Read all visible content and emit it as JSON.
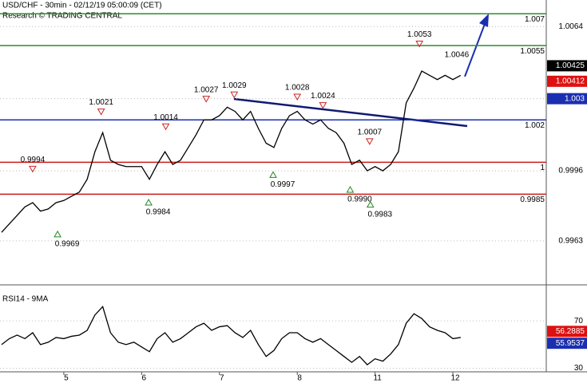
{
  "chart_data": [
    {
      "type": "line",
      "title": "USD/CHF - 30min - 02/12/19 05:00:09 (CET)",
      "subtitle": "Research © TRADING CENTRAL",
      "x": [
        4.2,
        4.3,
        4.4,
        4.5,
        4.6,
        4.7,
        4.8,
        4.9,
        5.0,
        5.1,
        5.2,
        5.3,
        5.4,
        5.5,
        5.6,
        5.7,
        5.8,
        5.9,
        6.0,
        6.1,
        6.2,
        6.3,
        6.4,
        6.5,
        6.6,
        6.7,
        6.8,
        6.9,
        7.0,
        7.1,
        7.2,
        7.3,
        7.4,
        7.5,
        7.6,
        7.7,
        7.8,
        7.9,
        8.0,
        8.1,
        8.2,
        8.3,
        8.4,
        8.5,
        8.6,
        8.7,
        8.8,
        8.9,
        9.0,
        9.1,
        9.2,
        9.3,
        9.4,
        9.5,
        9.6,
        9.7,
        9.8,
        9.9,
        10.0,
        10.1
      ],
      "series": [
        {
          "color": "#000000",
          "values": [
            0.9967,
            0.9971,
            0.9975,
            0.9979,
            0.9981,
            0.9977,
            0.9978,
            0.9981,
            0.9982,
            0.9984,
            0.9986,
            0.9992,
            1.0005,
            1.0014,
            1.0001,
            0.9999,
            0.9998,
            0.9998,
            0.9998,
            0.9992,
            0.9999,
            1.0005,
            0.9999,
            1.0001,
            1.0007,
            1.0013,
            1.002,
            1.002,
            1.0022,
            1.0026,
            1.0024,
            1.002,
            1.0024,
            1.0016,
            1.0009,
            1.0007,
            1.0016,
            1.0022,
            1.0024,
            1.002,
            1.0018,
            1.002,
            1.0016,
            1.0014,
            1.0009,
            0.9999,
            1.0001,
            0.9996,
            0.9998,
            0.9996,
            0.9999,
            1.0005,
            1.0028,
            1.0035,
            1.0043,
            1.0041,
            1.0039,
            1.0041,
            1.0039,
            1.0041
          ]
        }
      ],
      "xlim": [
        4.18,
        11.2
      ],
      "xticks": [
        5,
        6,
        7,
        8,
        {
          "value": 9,
          "label": "11"
        },
        {
          "value": 10,
          "label": "12"
        }
      ],
      "ylim": [
        0.9943,
        1.00765
      ],
      "yticks": [
        1.0064,
        1.003,
        0.9996,
        0.9963
      ],
      "grid": true,
      "levels": [
        {
          "value": 1.007,
          "color": "#2e8b2e"
        },
        {
          "value": 1.0055,
          "color": "#2e8b2e"
        },
        {
          "value": 1.002,
          "color": "#1a2fb0"
        },
        {
          "value": 1,
          "color": "#cc1a1a"
        },
        {
          "value": 0.9985,
          "color": "#cc1a1a"
        }
      ],
      "highs": {
        "color": "#cc2222",
        "x": [
          4.6,
          5.48,
          6.31,
          6.83,
          7.19,
          8.0,
          8.33,
          8.93,
          9.57
        ],
        "values": [
          0.9994,
          1.0021,
          1.0014,
          1.0027,
          1.0029,
          1.0028,
          1.0024,
          1.0007,
          1.0053
        ]
      },
      "lows": {
        "color": "#228822",
        "x": [
          4.92,
          6.09,
          7.69,
          8.68,
          8.94
        ],
        "values": [
          0.9969,
          0.9984,
          0.9997,
          0.999,
          0.9983
        ],
        "value_labels": [
          "0.9969",
          "0.9984",
          "0.9997",
          "0.9990",
          "0.9983"
        ]
      },
      "notes": [
        {
          "x": 10.05,
          "value": 1.0046
        }
      ],
      "axis_labels": [
        {
          "value": 1.00425,
          "color": "#000000"
        },
        {
          "value": 1.00412,
          "color": "#dd1111"
        },
        {
          "value": 1.003,
          "color": "#1a2fb0"
        }
      ]
    },
    {
      "type": "line",
      "title": "RSI14 - 9MA",
      "x": [
        4.2,
        4.3,
        4.4,
        4.5,
        4.6,
        4.7,
        4.8,
        4.9,
        5.0,
        5.1,
        5.2,
        5.3,
        5.4,
        5.5,
        5.6,
        5.7,
        5.8,
        5.9,
        6.0,
        6.1,
        6.2,
        6.3,
        6.4,
        6.5,
        6.6,
        6.7,
        6.8,
        6.9,
        7.0,
        7.1,
        7.2,
        7.3,
        7.4,
        7.5,
        7.6,
        7.7,
        7.8,
        7.9,
        8.0,
        8.1,
        8.2,
        8.3,
        8.4,
        8.5,
        8.6,
        8.7,
        8.8,
        8.9,
        9.0,
        9.1,
        9.2,
        9.3,
        9.4,
        9.5,
        9.6,
        9.7,
        9.8,
        9.9,
        10.0,
        10.1
      ],
      "series": [
        {
          "color": "#000000",
          "values": [
            50,
            55,
            58,
            55,
            60,
            50,
            52,
            56,
            55,
            57,
            58,
            62,
            75,
            82,
            60,
            52,
            50,
            52,
            48,
            44,
            55,
            60,
            52,
            55,
            60,
            65,
            68,
            62,
            65,
            66,
            60,
            56,
            62,
            50,
            40,
            45,
            55,
            60,
            60,
            55,
            52,
            55,
            50,
            45,
            40,
            35,
            40,
            33,
            38,
            36,
            42,
            50,
            68,
            76,
            72,
            65,
            62,
            60,
            55,
            56
          ]
        }
      ],
      "xlim": [
        4.18,
        11.2
      ],
      "ylim": [
        27,
        95
      ],
      "yticks": [
        70,
        30
      ],
      "grid": true,
      "axis_labels": [
        {
          "value": 56.2885,
          "color": "#dd1111"
        },
        {
          "value": 55.9537,
          "color": "#1a2fb0"
        }
      ]
    }
  ]
}
